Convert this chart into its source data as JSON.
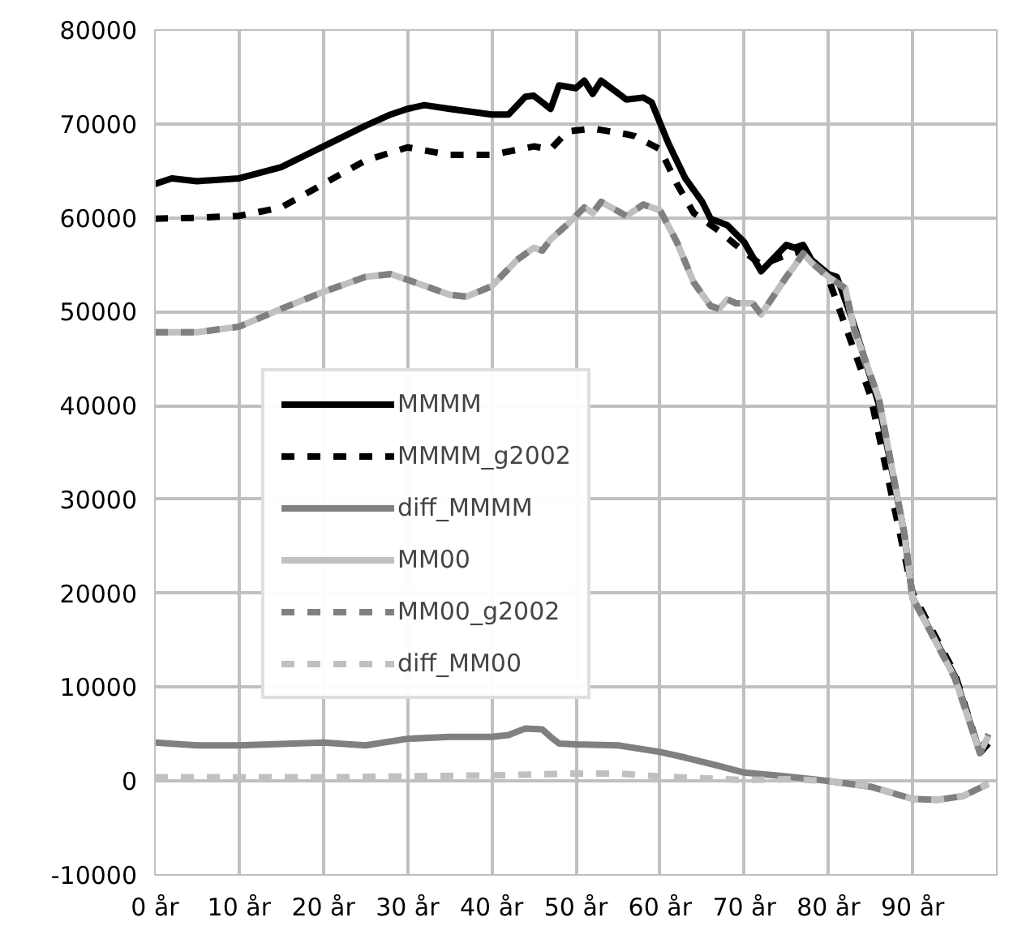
{
  "chart_data": {
    "type": "line",
    "xlim": [
      0,
      100
    ],
    "xticks": [
      {
        "value": 0,
        "label": "0 år"
      },
      {
        "value": 10,
        "label": "10 år"
      },
      {
        "value": 20,
        "label": "20 år"
      },
      {
        "value": 30,
        "label": "30 år"
      },
      {
        "value": 40,
        "label": "40 år"
      },
      {
        "value": 50,
        "label": "50 år"
      },
      {
        "value": 60,
        "label": "60 år"
      },
      {
        "value": 70,
        "label": "70 år"
      },
      {
        "value": 80,
        "label": "80 år"
      },
      {
        "value": 90,
        "label": "90 år"
      },
      {
        "value": 100,
        "label": null
      }
    ],
    "ylim": [
      -10000,
      80000
    ],
    "yticks": [
      -10000,
      0,
      10000,
      20000,
      30000,
      40000,
      50000,
      60000,
      70000,
      80000
    ],
    "grid": true,
    "legend": "center",
    "series": [
      {
        "name": "MMMM",
        "color": "#000000",
        "line_style": "solid",
        "x": [
          0,
          2,
          5,
          10,
          15,
          20,
          25,
          28,
          30,
          32,
          35,
          40,
          42,
          44,
          45,
          46,
          47,
          48,
          50,
          51,
          52,
          53,
          56,
          58,
          59,
          61,
          63,
          65,
          66,
          68,
          70,
          72,
          75,
          76,
          77,
          78,
          80,
          81,
          83,
          86,
          89,
          90,
          95,
          98,
          99
        ],
        "values": [
          63600,
          64200,
          63900,
          64200,
          65400,
          67600,
          69800,
          71000,
          71600,
          72000,
          71600,
          71000,
          71000,
          72900,
          73000,
          72300,
          71600,
          74100,
          73800,
          74600,
          73200,
          74600,
          72600,
          72800,
          72300,
          67900,
          64200,
          61700,
          59900,
          59200,
          57400,
          54300,
          57100,
          56800,
          57100,
          55500,
          54000,
          53700,
          48700,
          40100,
          26400,
          19500,
          11200,
          3000,
          4000
        ]
      },
      {
        "name": "MMMM_g2002",
        "color": "#000000",
        "line_style": "dashed",
        "x": [
          0,
          5,
          10,
          15,
          20,
          25,
          30,
          35,
          40,
          45,
          47,
          49,
          52,
          56,
          57,
          60,
          62,
          64,
          67,
          69,
          72,
          75,
          77,
          80,
          85,
          90,
          95,
          98,
          99
        ],
        "values": [
          59900,
          60000,
          60200,
          61100,
          63600,
          66100,
          67500,
          66700,
          66700,
          67600,
          67300,
          69200,
          69500,
          68900,
          68700,
          67300,
          63600,
          60500,
          58600,
          57100,
          55000,
          56000,
          56500,
          53500,
          41000,
          20000,
          11500,
          3000,
          5000
        ]
      },
      {
        "name": "diff_MMMM",
        "color": "#808080",
        "line_style": "solid",
        "x": [
          0,
          5,
          10,
          20,
          25,
          30,
          35,
          40,
          42,
          44,
          46,
          47,
          48,
          50,
          55,
          60,
          63,
          67,
          70,
          75,
          80,
          85,
          90,
          93,
          96,
          99
        ],
        "values": [
          4100,
          3800,
          3800,
          4100,
          3800,
          4500,
          4700,
          4700,
          4900,
          5600,
          5500,
          4700,
          4000,
          3900,
          3800,
          3100,
          2500,
          1600,
          900,
          500,
          0,
          -600,
          -1900,
          -2000,
          -1600,
          -300
        ]
      },
      {
        "name": "MM00",
        "color": "#c0c0c0",
        "line_style": "solid",
        "x": [
          0,
          5,
          10,
          15,
          20,
          25,
          28,
          30,
          35,
          37,
          40,
          43,
          45,
          46,
          47,
          49,
          51,
          52,
          53,
          56,
          58,
          60,
          62,
          64,
          66,
          67,
          68,
          69,
          71,
          72,
          75,
          76,
          77,
          78,
          80,
          82,
          83,
          86,
          89,
          90,
          95,
          98,
          99
        ],
        "values": [
          47800,
          47800,
          48400,
          50300,
          52100,
          53700,
          54000,
          53400,
          51800,
          51600,
          52700,
          55500,
          56800,
          56500,
          57700,
          59300,
          61100,
          60500,
          61700,
          60200,
          61400,
          60800,
          57400,
          53100,
          50600,
          50300,
          51300,
          50900,
          50900,
          49700,
          53700,
          54900,
          56200,
          55200,
          53700,
          52500,
          48300,
          40700,
          26400,
          19500,
          11000,
          3000,
          4800
        ]
      },
      {
        "name": "MM00_g2002",
        "color": "#808080",
        "line_style": "dashed",
        "x": [
          0,
          5,
          10,
          15,
          20,
          25,
          28,
          30,
          35,
          37,
          40,
          43,
          45,
          46,
          47,
          49,
          51,
          52,
          53,
          56,
          58,
          60,
          62,
          64,
          66,
          67,
          68,
          69,
          71,
          72,
          75,
          76,
          77,
          78,
          80,
          82,
          83,
          86,
          89,
          90,
          95,
          98,
          99
        ],
        "values": [
          47800,
          47800,
          48400,
          50300,
          52100,
          53700,
          54000,
          53400,
          51800,
          51600,
          52700,
          55500,
          56800,
          56500,
          57700,
          59300,
          61100,
          60500,
          61700,
          60200,
          61400,
          60800,
          57400,
          53100,
          50600,
          50300,
          51300,
          50900,
          50900,
          49700,
          53700,
          54900,
          56200,
          55200,
          53700,
          52500,
          48300,
          40700,
          26400,
          19500,
          11000,
          3000,
          5000
        ]
      },
      {
        "name": "diff_MM00",
        "color": "#c0c0c0",
        "line_style": "dashed",
        "x": [
          0,
          10,
          20,
          30,
          40,
          50,
          55,
          60,
          65,
          70,
          75,
          80,
          85,
          90,
          93,
          96,
          99
        ],
        "values": [
          400,
          400,
          400,
          500,
          600,
          800,
          800,
          500,
          300,
          100,
          200,
          0,
          -600,
          -1900,
          -2000,
          -1600,
          -300
        ]
      }
    ]
  }
}
